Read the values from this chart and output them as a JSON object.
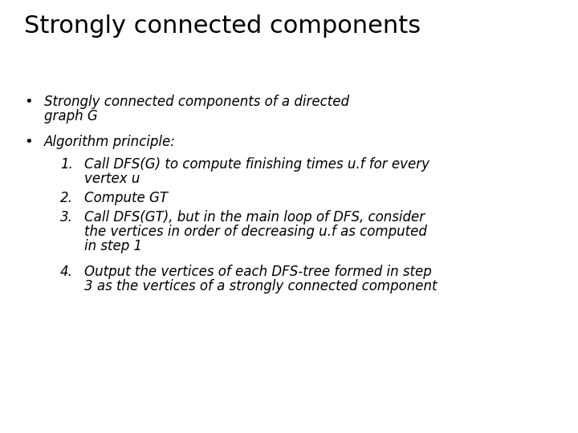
{
  "title": "Strongly connected components",
  "background_color": "#ffffff",
  "text_color": "#000000",
  "title_fontsize": 22,
  "body_fontsize": 12,
  "bullet1_line1": "Strongly connected components of a directed",
  "bullet1_line2": "graph G",
  "bullet2": "Algorithm principle:",
  "item1_line1": "Call DFS(G) to compute finishing times u.f for every",
  "item1_line2": "vertex u",
  "item2": "Compute GT",
  "item3_line1": "Call DFS(GT), but in the main loop of DFS, consider",
  "item3_line2": "the vertices in order of decreasing u.f as computed",
  "item3_line3": "in step 1",
  "item4_line1": "Output the vertices of each DFS-tree formed in step",
  "item4_line2": "3 as the vertices of a strongly connected component"
}
